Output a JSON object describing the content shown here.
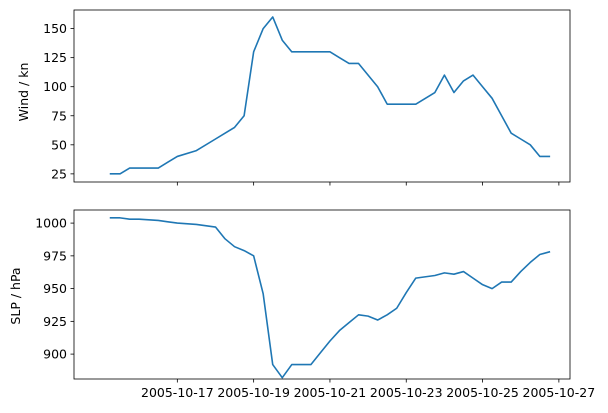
{
  "chart_data": [
    {
      "type": "line",
      "ylabel": "Wind / kn",
      "xlabel": "",
      "title": "",
      "grid": false,
      "series_color": "#1f77b4",
      "yticks": [
        25,
        50,
        75,
        100,
        125,
        150
      ],
      "ylim": [
        18,
        166
      ],
      "x": [
        "2005-10-15T06:00",
        "2005-10-15T12:00",
        "2005-10-15T18:00",
        "2005-10-16T00:00",
        "2005-10-16T12:00",
        "2005-10-16T18:00",
        "2005-10-17T00:00",
        "2005-10-17T12:00",
        "2005-10-18T00:00",
        "2005-10-18T06:00",
        "2005-10-18T12:00",
        "2005-10-18T18:00",
        "2005-10-19T00:00",
        "2005-10-19T06:00",
        "2005-10-19T12:00",
        "2005-10-19T18:00",
        "2005-10-20T00:00",
        "2005-10-20T12:00",
        "2005-10-20T18:00",
        "2005-10-21T00:00",
        "2005-10-21T06:00",
        "2005-10-21T12:00",
        "2005-10-21T18:00",
        "2005-10-22T00:00",
        "2005-10-22T06:00",
        "2005-10-22T12:00",
        "2005-10-22T18:00",
        "2005-10-23T00:00",
        "2005-10-23T06:00",
        "2005-10-23T18:00",
        "2005-10-24T00:00",
        "2005-10-24T06:00",
        "2005-10-24T12:00",
        "2005-10-24T18:00",
        "2005-10-25T00:00",
        "2005-10-25T06:00",
        "2005-10-25T12:00",
        "2005-10-25T18:00",
        "2005-10-26T00:00",
        "2005-10-26T06:00",
        "2005-10-26T12:00",
        "2005-10-26T18:00"
      ],
      "values": [
        25,
        25,
        30,
        30,
        30,
        35,
        40,
        45,
        55,
        60,
        65,
        75,
        130,
        150,
        160,
        140,
        130,
        130,
        130,
        130,
        125,
        120,
        120,
        110,
        100,
        85,
        85,
        85,
        85,
        95,
        110,
        95,
        105,
        110,
        100,
        90,
        75,
        60,
        55,
        50,
        40,
        40
      ]
    },
    {
      "type": "line",
      "ylabel": "SLP / hPa",
      "xlabel": "",
      "title": "",
      "grid": false,
      "series_color": "#1f77b4",
      "yticks": [
        900,
        925,
        950,
        975,
        1000
      ],
      "ylim": [
        881,
        1010
      ],
      "xticks": [
        "2005-10-17",
        "2005-10-19",
        "2005-10-21",
        "2005-10-23",
        "2005-10-25",
        "2005-10-27"
      ],
      "x": [
        "2005-10-15T06:00",
        "2005-10-15T12:00",
        "2005-10-15T18:00",
        "2005-10-16T00:00",
        "2005-10-16T12:00",
        "2005-10-16T18:00",
        "2005-10-17T00:00",
        "2005-10-17T12:00",
        "2005-10-18T00:00",
        "2005-10-18T06:00",
        "2005-10-18T12:00",
        "2005-10-18T18:00",
        "2005-10-19T00:00",
        "2005-10-19T06:00",
        "2005-10-19T12:00",
        "2005-10-19T18:00",
        "2005-10-20T00:00",
        "2005-10-20T12:00",
        "2005-10-20T18:00",
        "2005-10-21T00:00",
        "2005-10-21T06:00",
        "2005-10-21T12:00",
        "2005-10-21T18:00",
        "2005-10-22T00:00",
        "2005-10-22T06:00",
        "2005-10-22T12:00",
        "2005-10-22T18:00",
        "2005-10-23T00:00",
        "2005-10-23T06:00",
        "2005-10-23T18:00",
        "2005-10-24T00:00",
        "2005-10-24T06:00",
        "2005-10-24T12:00",
        "2005-10-24T18:00",
        "2005-10-25T00:00",
        "2005-10-25T06:00",
        "2005-10-25T12:00",
        "2005-10-25T18:00",
        "2005-10-26T00:00",
        "2005-10-26T06:00",
        "2005-10-26T12:00",
        "2005-10-26T18:00"
      ],
      "values": [
        1004,
        1004,
        1003,
        1003,
        1002,
        1001,
        1000,
        999,
        997,
        988,
        982,
        979,
        975,
        946,
        892,
        882,
        892,
        892,
        901,
        910,
        918,
        924,
        930,
        929,
        926,
        930,
        935,
        947,
        958,
        960,
        962,
        961,
        963,
        958,
        953,
        950,
        955,
        955,
        963,
        970,
        976,
        978
      ]
    }
  ]
}
